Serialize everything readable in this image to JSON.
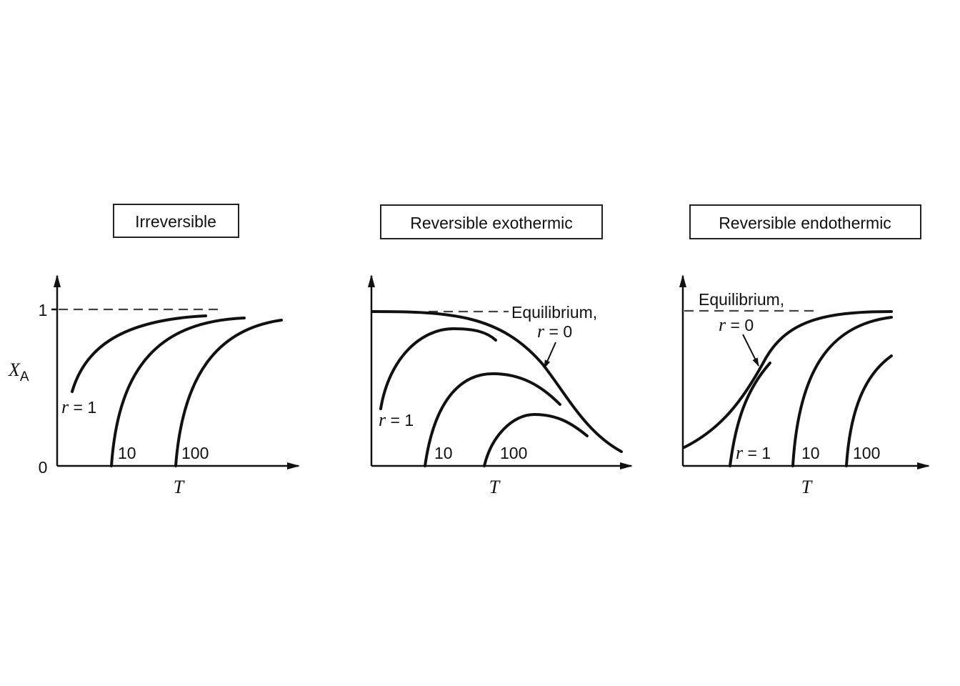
{
  "chart_data": [
    {
      "type": "line",
      "title": "Irreversible",
      "xlabel": "T",
      "ylabel": "X_A",
      "ylim": [
        0,
        1
      ],
      "yticks": [
        "0",
        "1"
      ],
      "annotations": [
        "r = 1",
        "10",
        "100"
      ],
      "series": [
        {
          "name": "r = 1",
          "x": [
            0.07,
            0.15,
            0.25,
            0.38,
            0.5,
            0.62
          ],
          "y": [
            0.46,
            0.67,
            0.8,
            0.89,
            0.93,
            0.96
          ]
        },
        {
          "name": "10",
          "x": [
            0.22,
            0.26,
            0.33,
            0.43,
            0.57,
            0.78
          ],
          "y": [
            0.0,
            0.38,
            0.62,
            0.78,
            0.88,
            0.95
          ]
        },
        {
          "name": "100",
          "x": [
            0.49,
            0.53,
            0.6,
            0.7,
            0.83,
            0.94
          ],
          "y": [
            0.0,
            0.38,
            0.62,
            0.78,
            0.88,
            0.93
          ]
        }
      ],
      "reference": {
        "y": 1,
        "style": "dashed"
      }
    },
    {
      "type": "line",
      "title": "Reversible exothermic",
      "xlabel": "T",
      "annotations": [
        "Equilibrium,",
        "r = 0",
        "r = 1",
        "10",
        "100"
      ],
      "series": [
        {
          "name": "Equilibrium, r = 0",
          "x": [
            0.0,
            0.12,
            0.28,
            0.45,
            0.58,
            0.7,
            0.8,
            0.9,
            1.0
          ],
          "y": [
            0.99,
            0.99,
            0.96,
            0.86,
            0.66,
            0.42,
            0.23,
            0.12,
            0.08
          ]
        },
        {
          "name": "r = 1",
          "x": [
            0.04,
            0.1,
            0.18,
            0.27,
            0.37,
            0.45
          ],
          "y": [
            0.37,
            0.65,
            0.82,
            0.88,
            0.87,
            0.8
          ]
        },
        {
          "name": "10",
          "x": [
            0.21,
            0.27,
            0.36,
            0.47,
            0.58,
            0.67,
            0.75
          ],
          "y": [
            0.0,
            0.28,
            0.52,
            0.6,
            0.57,
            0.46,
            0.34
          ]
        },
        {
          "name": "100",
          "x": [
            0.44,
            0.51,
            0.59,
            0.66,
            0.74,
            0.8,
            0.86
          ],
          "y": [
            0.0,
            0.16,
            0.28,
            0.32,
            0.3,
            0.25,
            0.19
          ]
        }
      ]
    },
    {
      "type": "line",
      "title": "Reversible endothermic",
      "xlabel": "T",
      "annotations": [
        "Equilibrium,",
        "r = 0",
        "r = 1",
        "10",
        "100"
      ],
      "series": [
        {
          "name": "Equilibrium, r = 0",
          "x": [
            0.0,
            0.12,
            0.26,
            0.4,
            0.55,
            0.7,
            0.85,
            1.0
          ],
          "y": [
            0.12,
            0.24,
            0.46,
            0.76,
            0.92,
            0.98,
            1.0,
            1.0
          ]
        },
        {
          "name": "r = 1",
          "x": [
            0.19,
            0.23,
            0.28,
            0.36
          ],
          "y": [
            0.0,
            0.28,
            0.47,
            0.66
          ]
        },
        {
          "name": "10",
          "x": [
            0.44,
            0.48,
            0.55,
            0.65,
            0.8,
            1.0
          ],
          "y": [
            0.0,
            0.4,
            0.63,
            0.8,
            0.9,
            0.95
          ]
        },
        {
          "name": "100",
          "x": [
            0.66,
            0.69,
            0.75,
            0.85,
            1.0
          ],
          "y": [
            0.0,
            0.32,
            0.52,
            0.62,
            0.72
          ]
        }
      ],
      "reference": {
        "y": 1,
        "style": "dashed"
      }
    }
  ]
}
